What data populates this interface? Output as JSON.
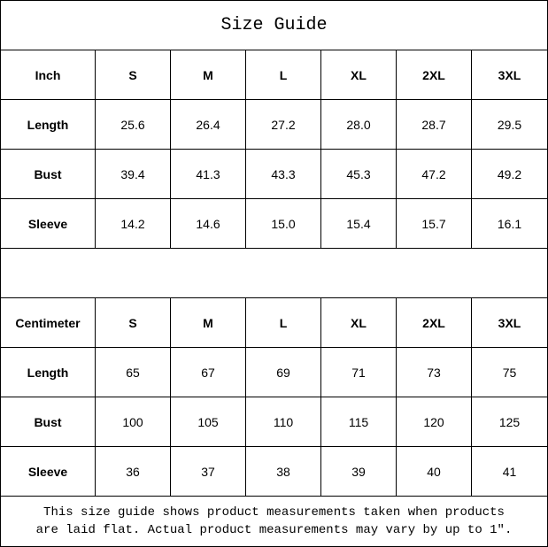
{
  "title": "Size Guide",
  "sizes": [
    "S",
    "M",
    "L",
    "XL",
    "2XL",
    "3XL"
  ],
  "inch": {
    "header": "Inch",
    "rows": [
      {
        "label": "Length",
        "values": [
          "25.6",
          "26.4",
          "27.2",
          "28.0",
          "28.7",
          "29.5"
        ]
      },
      {
        "label": "Bust",
        "values": [
          "39.4",
          "41.3",
          "43.3",
          "45.3",
          "47.2",
          "49.2"
        ]
      },
      {
        "label": "Sleeve",
        "values": [
          "14.2",
          "14.6",
          "15.0",
          "15.4",
          "15.7",
          "16.1"
        ]
      }
    ]
  },
  "centimeter": {
    "header": "Centimeter",
    "rows": [
      {
        "label": "Length",
        "values": [
          "65",
          "67",
          "69",
          "71",
          "73",
          "75"
        ]
      },
      {
        "label": "Bust",
        "values": [
          "100",
          "105",
          "110",
          "115",
          "120",
          "125"
        ]
      },
      {
        "label": "Sleeve",
        "values": [
          "36",
          "37",
          "38",
          "39",
          "40",
          "41"
        ]
      }
    ]
  },
  "footer": {
    "line1": "This size guide shows product measurements taken when products",
    "line2": "are laid flat. Actual product measurements may vary by up to 1″."
  }
}
